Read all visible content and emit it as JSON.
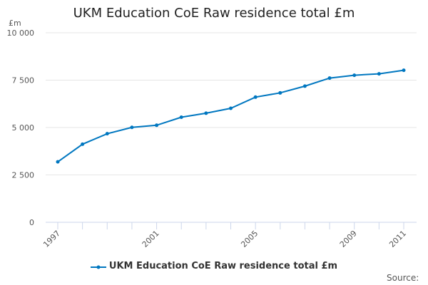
{
  "chart_data": {
    "type": "line",
    "title": "UKM Education CoE Raw residence total £m",
    "ylabel": "£m",
    "xlabel": "",
    "x": [
      1997,
      1998,
      1999,
      2000,
      2001,
      2002,
      2003,
      2004,
      2005,
      2006,
      2007,
      2008,
      2009,
      2010,
      2011
    ],
    "x_tick_labels": [
      "1997",
      "2001",
      "2005",
      "2009",
      "2011"
    ],
    "y_ticks": [
      0,
      2500,
      5000,
      7500,
      10000
    ],
    "y_tick_labels": [
      "0",
      "2 500",
      "5 000",
      "7 500",
      "10 000"
    ],
    "ylim": [
      0,
      10000
    ],
    "grid": true,
    "legend_position": "bottom",
    "series": [
      {
        "name": "UKM Education CoE Raw residence total £m",
        "color": "#0077c0",
        "values": [
          3190,
          4120,
          4675,
          5010,
          5120,
          5545,
          5755,
          6015,
          6605,
          6830,
          7185,
          7610,
          7760,
          7835,
          8020
        ]
      }
    ],
    "source": "Source:"
  }
}
